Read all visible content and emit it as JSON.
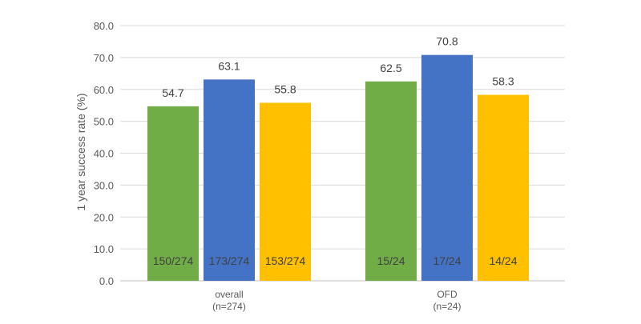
{
  "chart_data": {
    "type": "bar",
    "title": "",
    "xlabel": "",
    "ylabel": "1 year success rate (%)",
    "ylim": [
      0,
      80
    ],
    "yticks": [
      "0.0",
      "10.0",
      "20.0",
      "30.0",
      "40.0",
      "50.0",
      "60.0",
      "70.0",
      "80.0"
    ],
    "grid": true,
    "legend": "none",
    "categories": [
      {
        "line1": "overall",
        "line2": "(n=274)"
      },
      {
        "line1": "OFD",
        "line2": "(n=24)"
      }
    ],
    "series": [
      {
        "color": "#70ad47",
        "values": [
          54.7,
          62.5
        ],
        "labels": [
          "54.7",
          "62.5"
        ],
        "counts": [
          "150/274",
          "15/24"
        ]
      },
      {
        "color": "#4472c4",
        "values": [
          63.1,
          70.8
        ],
        "labels": [
          "63.1",
          "70.8"
        ],
        "counts": [
          "173/274",
          "17/24"
        ]
      },
      {
        "color": "#ffc000",
        "values": [
          55.8,
          58.3
        ],
        "labels": [
          "55.8",
          "58.3"
        ],
        "counts": [
          "153/274",
          "14/24"
        ]
      }
    ]
  }
}
